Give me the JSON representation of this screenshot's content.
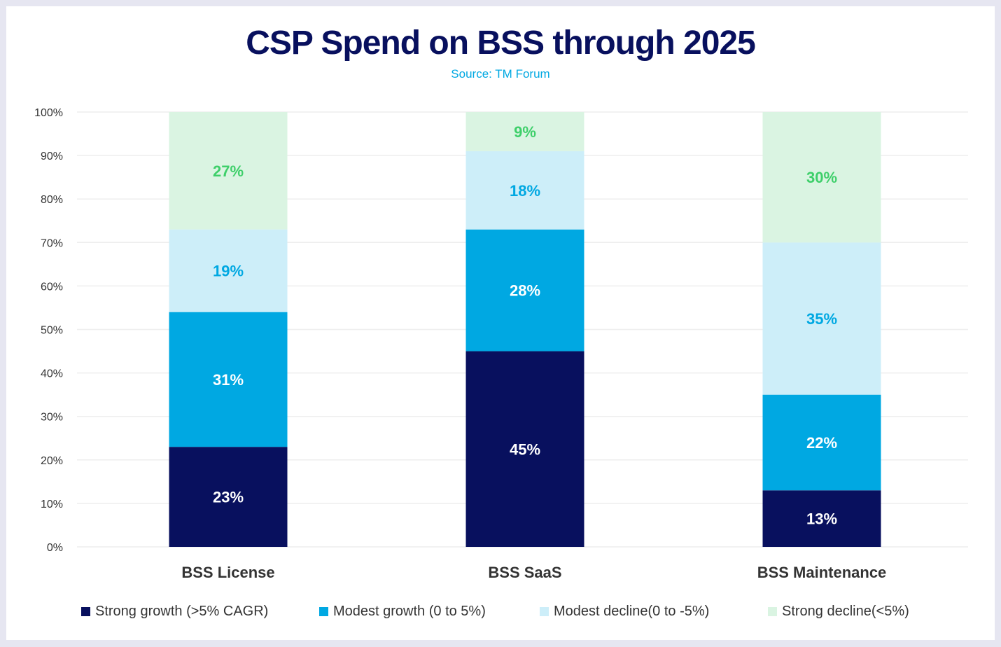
{
  "chart_data": {
    "type": "bar",
    "stacked": true,
    "title": "CSP Spend on BSS through 2025",
    "subtitle": "Source: TM Forum",
    "categories": [
      "BSS License",
      "BSS SaaS",
      "BSS Maintenance"
    ],
    "series": [
      {
        "name": "Strong growth (>5% CAGR)",
        "values": [
          23,
          45,
          13
        ],
        "color": "#08105e",
        "label_color": "#ffffff"
      },
      {
        "name": "Modest growth (0 to 5%)",
        "values": [
          31,
          28,
          22
        ],
        "color": "#00a8e2",
        "label_color": "#ffffff"
      },
      {
        "name": "Modest decline(0 to -5%)",
        "values": [
          19,
          18,
          35
        ],
        "color": "#cdeef9",
        "label_color": "#00a8e2"
      },
      {
        "name": "Strong decline(<5%)",
        "values": [
          27,
          9,
          30
        ],
        "color": "#daf4e2",
        "label_color": "#3ecf6a"
      }
    ],
    "yticks": [
      "0%",
      "10%",
      "20%",
      "30%",
      "40%",
      "50%",
      "60%",
      "70%",
      "80%",
      "90%",
      "100%"
    ],
    "ylim": [
      0,
      100
    ],
    "grid": true,
    "legend": "bottom"
  }
}
